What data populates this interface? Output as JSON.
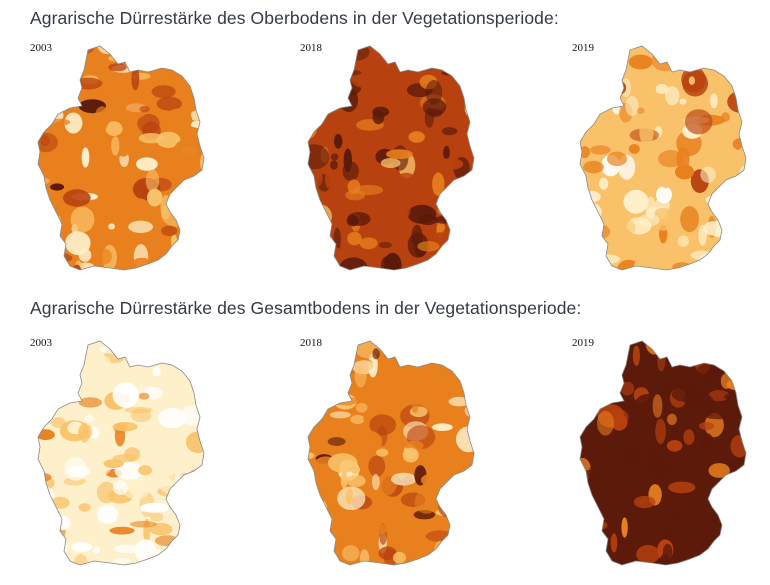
{
  "maps": {
    "top": {
      "title": "Agrarische Dürrestärke des Oberbodens in der Vegetationsperiode:",
      "panels": [
        {
          "year": "2003",
          "drought_level": 0.55,
          "dominant_color": "#e07a1e"
        },
        {
          "year": "2018",
          "drought_level": 0.85,
          "dominant_color": "#5c1a0a"
        },
        {
          "year": "2019",
          "drought_level": 0.4,
          "dominant_color": "#f0a040"
        }
      ]
    },
    "bottom": {
      "title": "Agrarische Dürrestärke des Gesamtbodens in der Vegetationsperiode:",
      "panels": [
        {
          "year": "2003",
          "drought_level": 0.2,
          "dominant_color": "#fff3d6"
        },
        {
          "year": "2018",
          "drought_level": 0.6,
          "dominant_color": "#e58a2a"
        },
        {
          "year": "2019",
          "drought_level": 0.9,
          "dominant_color": "#5c1a0a"
        }
      ]
    }
  },
  "colors": {
    "none": "#ffffff",
    "light": "#fff0cc",
    "moderate": "#f9c26a",
    "severe": "#e8801e",
    "extreme": "#b8420f",
    "exceptional": "#5c1a0a",
    "border": "#8a8a8a"
  }
}
